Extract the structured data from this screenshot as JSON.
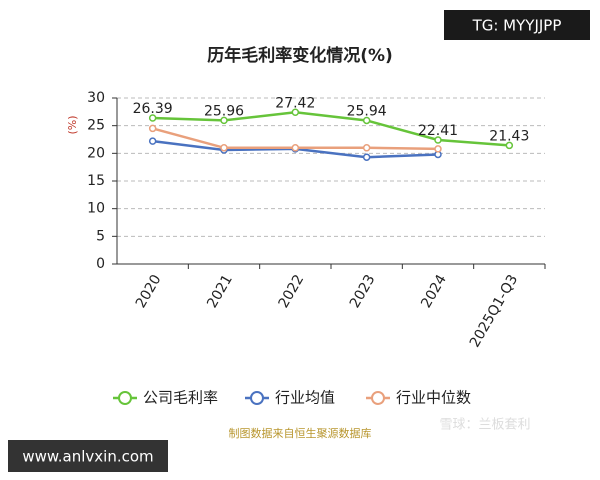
{
  "chart_data": {
    "type": "line",
    "title": "历年毛利率变化情况(%)",
    "y_label": "(%)",
    "categories": [
      "2020",
      "2021",
      "2022",
      "2023",
      "2024",
      "2025Q1-Q3"
    ],
    "series": [
      {
        "name": "公司毛利率",
        "color": "#66c43a",
        "values": [
          26.39,
          25.96,
          27.42,
          25.94,
          22.41,
          21.43
        ],
        "show_labels": true
      },
      {
        "name": "行业均值",
        "color": "#4a72c0",
        "values": [
          22.2,
          20.6,
          20.8,
          19.3,
          19.8,
          null
        ]
      },
      {
        "name": "行业中位数",
        "color": "#e9a07c",
        "values": [
          24.5,
          21.0,
          21.0,
          21.0,
          20.8,
          null
        ]
      }
    ],
    "ylim": [
      0,
      30
    ],
    "yticks": [
      0,
      5,
      10,
      15,
      20,
      25,
      30
    ],
    "grid": true,
    "source": "制图数据来自恒生聚源数据库"
  },
  "watermarks": {
    "top_right": "TG: MYYJJPP",
    "bottom_left": "www.anlvxin.com",
    "logo": "雪球：兰板套利"
  }
}
